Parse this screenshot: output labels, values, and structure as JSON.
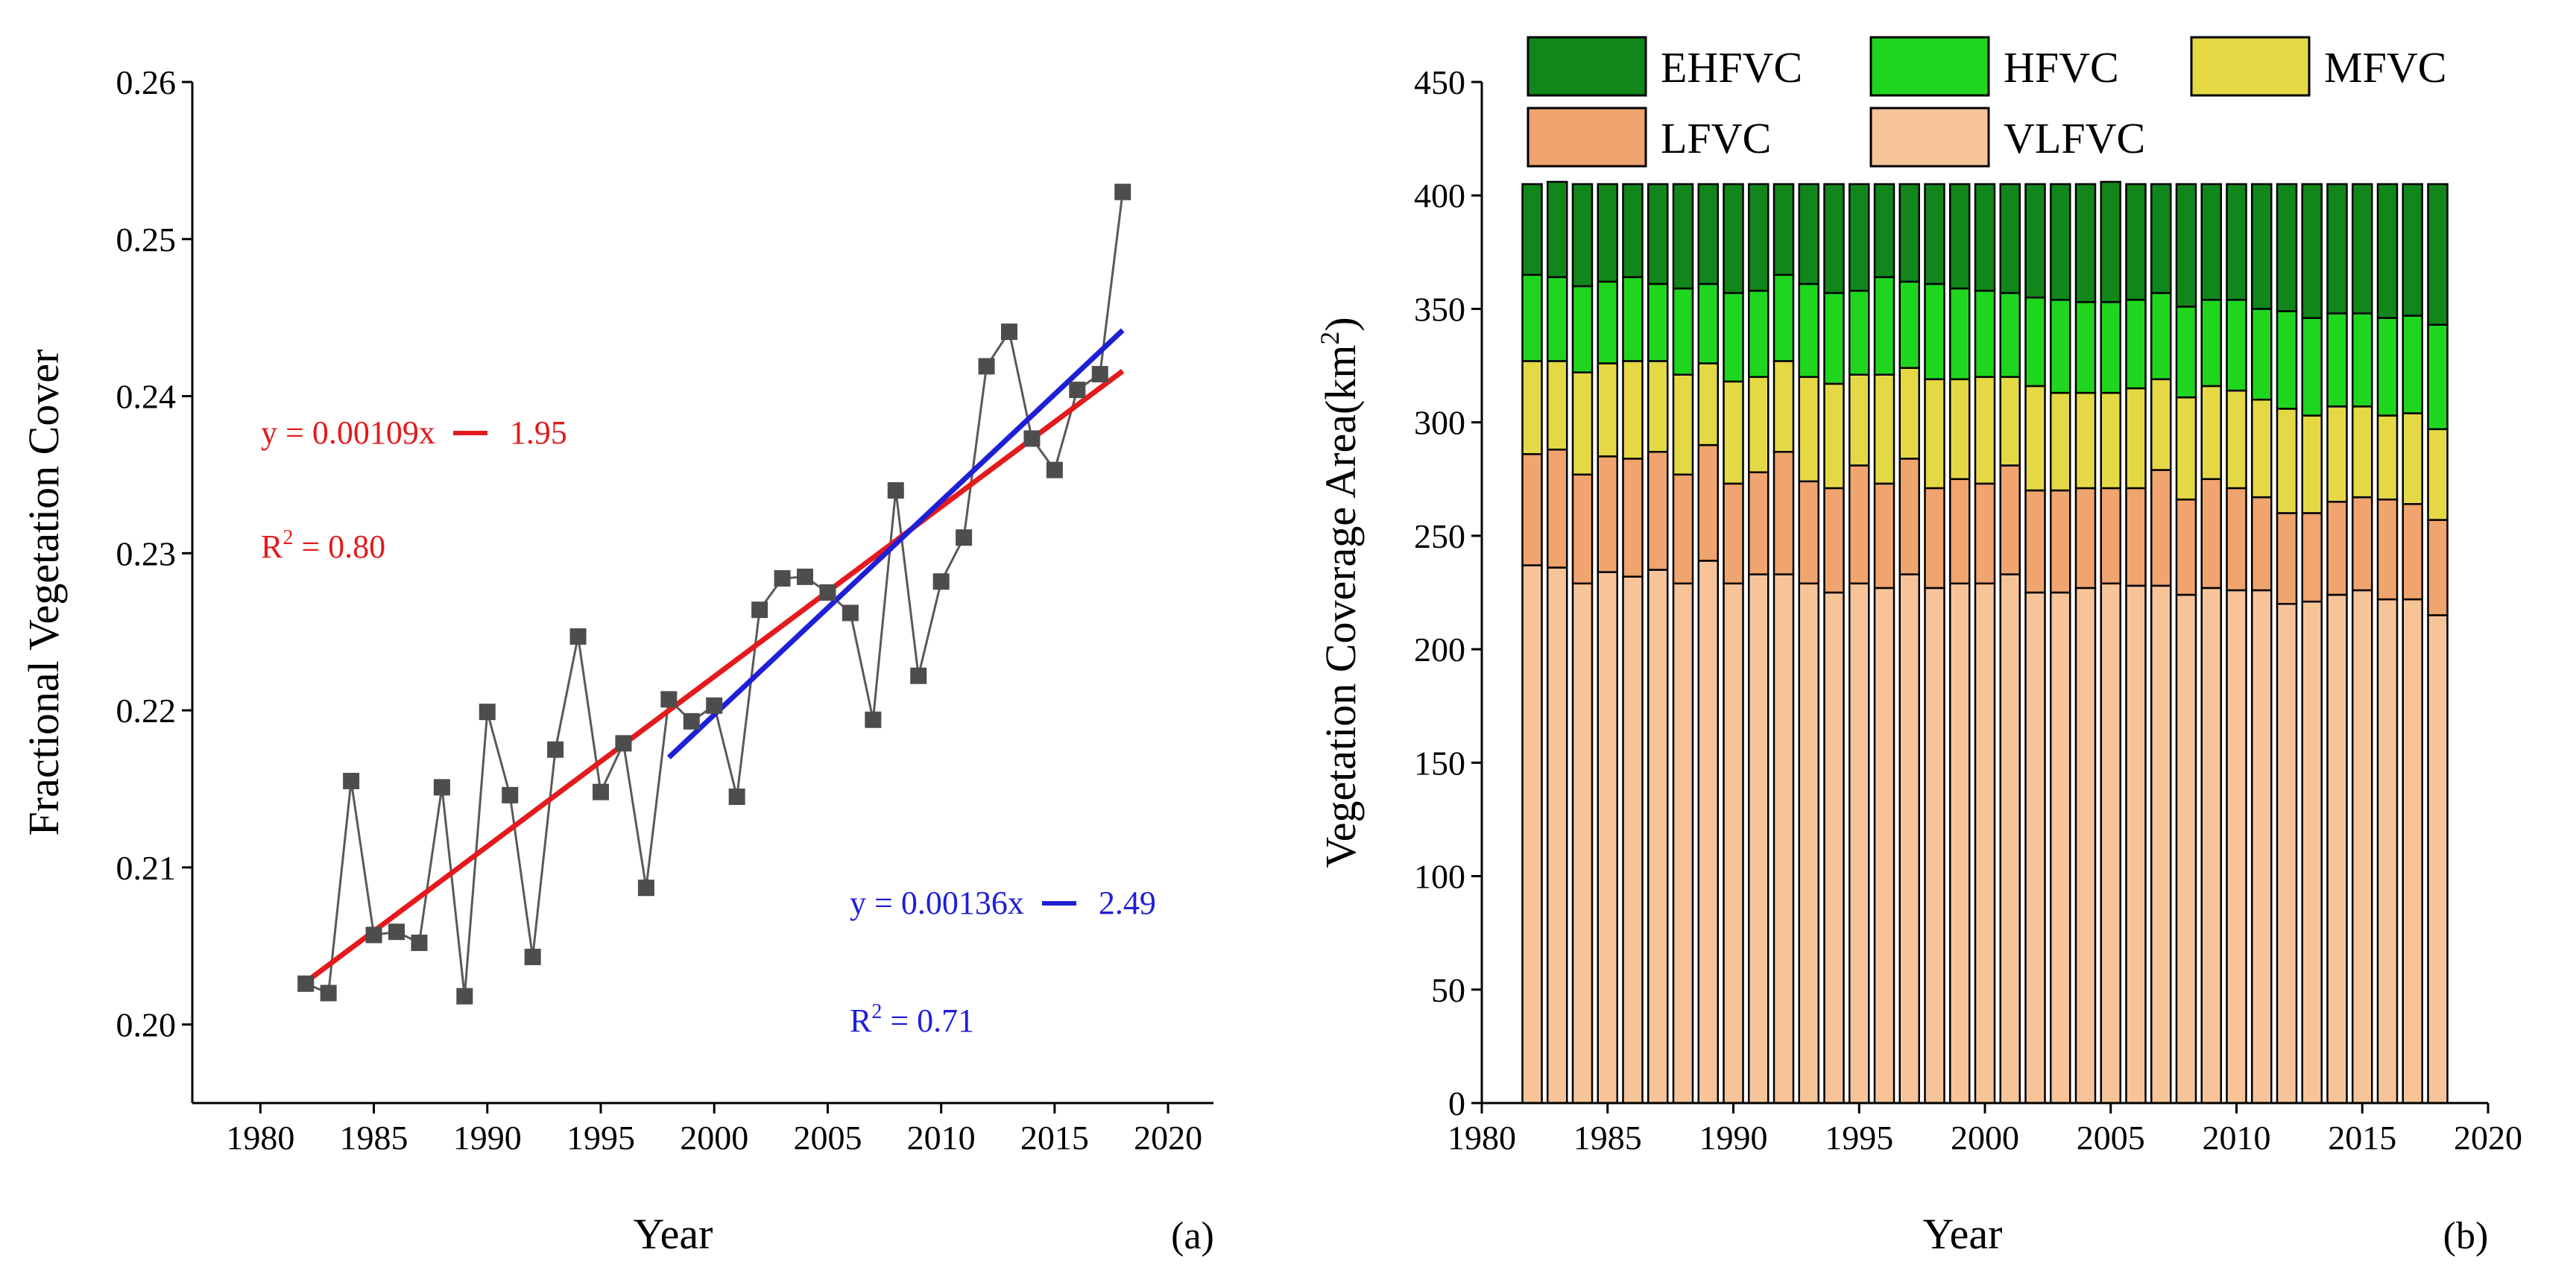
{
  "chart_data": [
    {
      "type": "line",
      "panel_label": "(a)",
      "xlabel": "Year",
      "ylabel": "Fractional Vegetation Cover",
      "xlim": [
        1977,
        2022
      ],
      "ylim": [
        0.195,
        0.26
      ],
      "xticks": [
        "1980",
        "1985",
        "1990",
        "1995",
        "2000",
        "2005",
        "2010",
        "2015",
        "2020"
      ],
      "yticks": [
        "0.20",
        "0.21",
        "0.22",
        "0.23",
        "0.24",
        "0.25",
        "0.26"
      ],
      "grid": false,
      "colors": {
        "data": "#595959",
        "marker": "#4d4d4d",
        "fit_full": "#e41a1c",
        "fit_recent": "#1f1fd6"
      },
      "series": [
        {
          "x": [
            1982,
            1983,
            1984,
            1985,
            1986,
            1987,
            1988,
            1989,
            1990,
            1991,
            1992,
            1993,
            1994,
            1995,
            1996,
            1997,
            1998,
            1999,
            2000,
            2001,
            2002,
            2003,
            2004,
            2005,
            2006,
            2007,
            2008,
            2009,
            2010,
            2011,
            2012,
            2013,
            2014,
            2015,
            2016,
            2017,
            2018
          ],
          "y": [
            0.2026,
            0.202,
            0.2155,
            0.2057,
            0.2059,
            0.2052,
            0.2151,
            0.2018,
            0.2199,
            0.2146,
            0.2043,
            0.2175,
            0.2247,
            0.2148,
            0.2179,
            0.2087,
            0.2207,
            0.2193,
            0.2203,
            0.2145,
            0.2264,
            0.2284,
            0.2285,
            0.2275,
            0.2262,
            0.2194,
            0.234,
            0.2222,
            0.2282,
            0.231,
            0.2419,
            0.2441,
            0.2373,
            0.2353,
            0.2404,
            0.2414,
            0.253
          ]
        }
      ],
      "fits": [
        {
          "x": [
            1982,
            2018
          ],
          "y": [
            0.2027,
            0.2416
          ],
          "color": "#e41a1c",
          "equation_lhs": "y = 0.00109x",
          "equation_rhs": "1.95",
          "r2_prefix": "R",
          "r2_value": " = 0.80"
        },
        {
          "x": [
            1998,
            2018
          ],
          "y": [
            0.217,
            0.2442
          ],
          "color": "#1f1fd6",
          "equation_lhs": "y = 0.00136x",
          "equation_rhs": "2.49",
          "r2_prefix": "R",
          "r2_value": " = 0.71"
        }
      ]
    },
    {
      "type": "bar",
      "stacked": true,
      "panel_label": "(b)",
      "xlabel": "Year",
      "ylabel_main": "Vegetation Coverage Area(km",
      "ylabel_sup": "2",
      "ylabel_end": ")",
      "xlim": [
        1980,
        2020
      ],
      "ylim": [
        0,
        450
      ],
      "xticks": [
        "1980",
        "1985",
        "1990",
        "1995",
        "2000",
        "2005",
        "2010",
        "2015",
        "2020"
      ],
      "yticks": [
        "0",
        "50",
        "100",
        "150",
        "200",
        "250",
        "300",
        "350",
        "400",
        "450"
      ],
      "grid": false,
      "legend_position": "top",
      "categories": [
        1982,
        1983,
        1984,
        1985,
        1986,
        1987,
        1988,
        1989,
        1990,
        1991,
        1992,
        1993,
        1994,
        1995,
        1996,
        1997,
        1998,
        1999,
        2000,
        2001,
        2002,
        2003,
        2004,
        2005,
        2006,
        2007,
        2008,
        2009,
        2010,
        2011,
        2012,
        2013,
        2014,
        2015,
        2016,
        2017,
        2018
      ],
      "series": [
        {
          "name": "VLFVC",
          "color": "#f7c49a",
          "values": [
            237,
            236,
            229,
            234,
            232,
            235,
            229,
            239,
            229,
            233,
            233,
            229,
            225,
            229,
            227,
            233,
            227,
            229,
            229,
            233,
            225,
            225,
            227,
            229,
            228,
            228,
            224,
            227,
            226,
            226,
            220,
            221,
            224,
            226,
            222,
            222,
            215
          ]
        },
        {
          "name": "LFVC",
          "color": "#f0a46e",
          "values": [
            49,
            52,
            48,
            51,
            52,
            52,
            48,
            51,
            44,
            45,
            54,
            45,
            46,
            52,
            46,
            51,
            44,
            46,
            44,
            48,
            45,
            45,
            44,
            42,
            43,
            51,
            42,
            48,
            45,
            41,
            40,
            39,
            41,
            41,
            44,
            42,
            42
          ]
        },
        {
          "name": "MFVC",
          "color": "#e4d945",
          "values": [
            41,
            39,
            45,
            41,
            43,
            40,
            44,
            36,
            45,
            42,
            40,
            46,
            46,
            40,
            48,
            40,
            48,
            44,
            47,
            39,
            46,
            43,
            42,
            42,
            44,
            40,
            45,
            41,
            43,
            43,
            46,
            43,
            42,
            40,
            37,
            40,
            40
          ]
        },
        {
          "name": "HFVC",
          "color": "#1fd61f",
          "values": [
            38,
            37,
            38,
            36,
            37,
            34,
            38,
            35,
            39,
            38,
            38,
            41,
            40,
            37,
            43,
            38,
            42,
            40,
            38,
            37,
            39,
            41,
            40,
            40,
            39,
            38,
            40,
            38,
            40,
            40,
            43,
            43,
            41,
            41,
            43,
            43,
            46
          ]
        },
        {
          "name": "EHFVC",
          "color": "#11861a",
          "values": [
            40,
            42,
            45,
            43,
            41,
            44,
            46,
            44,
            48,
            47,
            40,
            44,
            48,
            47,
            41,
            43,
            44,
            46,
            47,
            48,
            50,
            51,
            52,
            53,
            51,
            48,
            54,
            51,
            51,
            55,
            56,
            59,
            57,
            57,
            59,
            58,
            62
          ]
        }
      ]
    }
  ]
}
